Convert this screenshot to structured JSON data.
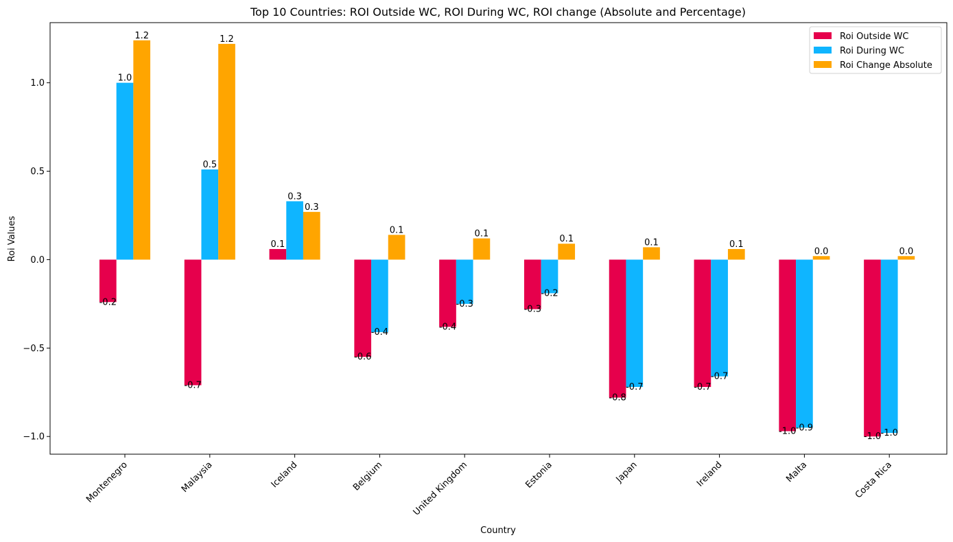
{
  "chart_data": {
    "type": "bar",
    "title": "Top 10 Countries: ROI Outside WC, ROI During WC, ROI change (Absolute and Percentage)",
    "xlabel": "Country",
    "ylabel": "Roi Values",
    "categories": [
      "Montenegro",
      "Malaysia",
      "Iceland",
      "Belgium",
      "United Kingdom",
      "Estonia",
      "Japan",
      "Ireland",
      "Malta",
      "Costa Rica"
    ],
    "series": [
      {
        "name": "Roi Outside WC",
        "color": "#e6004c",
        "values": [
          -0.24,
          -0.71,
          0.06,
          -0.55,
          -0.38,
          -0.28,
          -0.78,
          -0.72,
          -0.97,
          -1.0
        ],
        "labels": [
          "-0.2",
          "-0.7",
          "0.1",
          "-0.6",
          "-0.4",
          "-0.3",
          "-0.8",
          "-0.7",
          "-1.0",
          "-1.0"
        ]
      },
      {
        "name": "Roi During WC",
        "color": "#0fb5ff",
        "values": [
          1.0,
          0.51,
          0.33,
          -0.41,
          -0.25,
          -0.19,
          -0.72,
          -0.66,
          -0.95,
          -0.98
        ],
        "labels": [
          "1.0",
          "0.5",
          "0.3",
          "-0.4",
          "-0.3",
          "-0.2",
          "-0.7",
          "-0.7",
          "-0.9",
          "-1.0"
        ]
      },
      {
        "name": "Roi Change Absolute",
        "color": "#ffa500",
        "values": [
          1.24,
          1.22,
          0.27,
          0.14,
          0.12,
          0.09,
          0.07,
          0.06,
          0.02,
          0.02
        ],
        "labels": [
          "1.2",
          "1.2",
          "0.3",
          "0.1",
          "0.1",
          "0.1",
          "0.1",
          "0.1",
          "0.0",
          "0.0"
        ]
      }
    ],
    "yticks": [
      -1.0,
      -0.5,
      0.0,
      0.5,
      1.0
    ],
    "ytick_labels": [
      "−1.0",
      "−0.5",
      "0.0",
      "0.5",
      "1.0"
    ],
    "ylim": [
      -1.1,
      1.34
    ],
    "grid": false,
    "legend": "top-right"
  }
}
